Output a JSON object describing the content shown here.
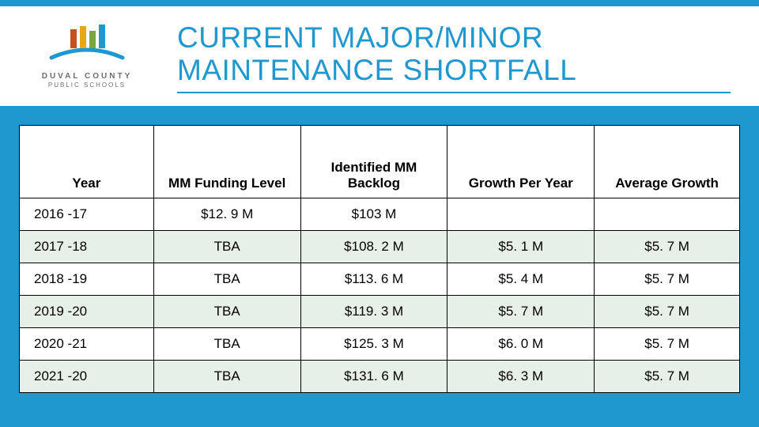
{
  "logo": {
    "line1": "DUVAL COUNTY",
    "line2": "PUBLIC SCHOOLS",
    "bar_colors": [
      "#c94f1e",
      "#e6a817",
      "#7aa642",
      "#1f97cf"
    ],
    "arc_color": "#1f97cf"
  },
  "title": {
    "line1": "CURRENT MAJOR/MINOR",
    "line2": "MAINTENANCE SHORTFALL"
  },
  "colors": {
    "accent": "#1f97cf",
    "alt_row": "#e6f0e8",
    "border": "#000000",
    "bg": "#ffffff"
  },
  "table": {
    "columns": [
      "Year",
      "MM Funding Level",
      "Identified MM Backlog",
      "Growth Per Year",
      "Average Growth"
    ],
    "rows": [
      {
        "alt": false,
        "cells": [
          "2016 -17",
          "$12. 9 M",
          "$103 M",
          "",
          ""
        ]
      },
      {
        "alt": true,
        "cells": [
          "2017 -18",
          "TBA",
          "$108. 2 M",
          "$5. 1 M",
          "$5. 7 M"
        ]
      },
      {
        "alt": false,
        "cells": [
          "2018 -19",
          "TBA",
          "$113. 6 M",
          "$5. 4 M",
          "$5. 7 M"
        ]
      },
      {
        "alt": true,
        "cells": [
          "2019 -20",
          "TBA",
          "$119. 3 M",
          "$5. 7 M",
          "$5. 7 M"
        ]
      },
      {
        "alt": false,
        "cells": [
          "2020 -21",
          "TBA",
          "$125. 3 M",
          "$6. 0 M",
          "$5. 7 M"
        ]
      },
      {
        "alt": true,
        "cells": [
          "2021 -20",
          "TBA",
          "$131. 6 M",
          "$6. 3 M",
          "$5. 7 M"
        ]
      }
    ]
  }
}
